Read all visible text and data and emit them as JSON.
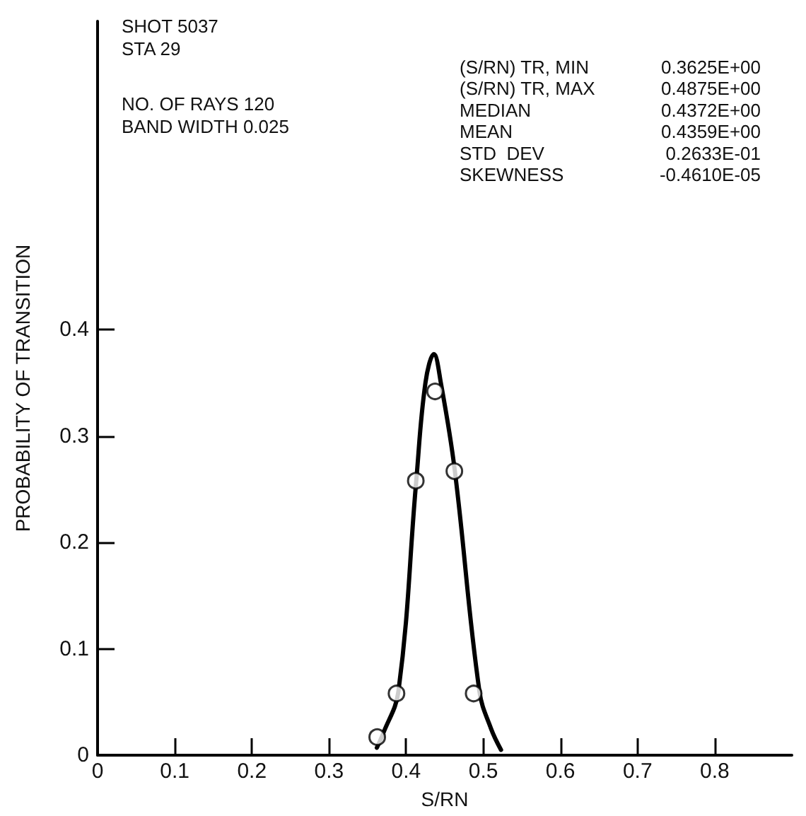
{
  "chart_data": {
    "type": "scatter",
    "xlabel": "S/RN",
    "ylabel": "PROBABILITY OF TRANSITION",
    "series": [
      {
        "type": "line",
        "color": "#000000",
        "marker": "none",
        "x": [
          0.362,
          0.37,
          0.39,
          0.413,
          0.425,
          0.436,
          0.445,
          0.463,
          0.495,
          0.51,
          0.523
        ],
        "values": [
          0.007,
          0.02,
          0.06,
          0.257,
          0.35,
          0.377,
          0.35,
          0.268,
          0.06,
          0.025,
          0.005
        ]
      },
      {
        "color": "#000000",
        "marker": "circle",
        "x": [
          0.3625,
          0.3875,
          0.4125,
          0.4375,
          0.4625,
          0.4875
        ],
        "values": [
          0.017,
          0.058,
          0.258,
          0.342,
          0.267,
          0.058
        ]
      }
    ],
    "xlim": [
      0,
      0.9
    ],
    "xticks": [
      0,
      0.1,
      0.2,
      0.3,
      0.4,
      0.5,
      0.6,
      0.7,
      0.8
    ],
    "ylim": [
      0,
      0.69
    ],
    "yticks": [
      0,
      0.1,
      0.2,
      0.3,
      0.4
    ],
    "grid": false,
    "annotations": [
      "SHOT 5037",
      "STA 29",
      "NO. OF RAYS 120",
      "BAND WIDTH 0.025",
      "(S/RN) TR, MIN",
      "0.3625E+00",
      "(S/RN) TR, MAX",
      "0.4875E+00",
      "MEDIAN",
      "0.4372E+00",
      "MEAN",
      "0.4359E+00",
      "STD  DEV",
      "0.2633E-01",
      "SKEWNESS",
      "-0.4610E-05"
    ]
  }
}
